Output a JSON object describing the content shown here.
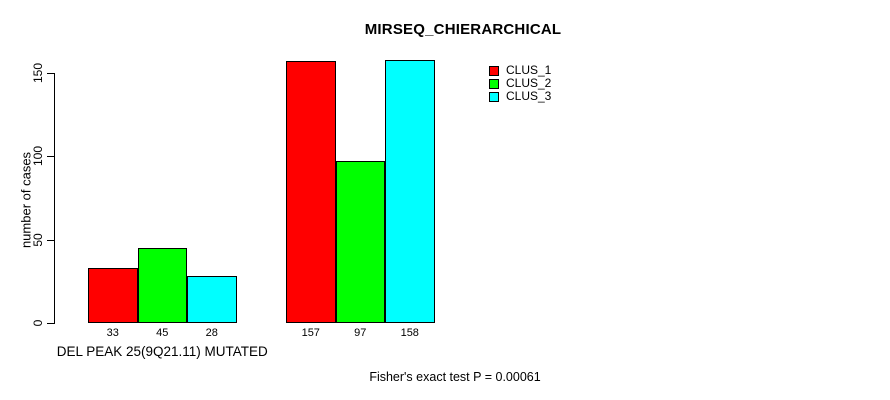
{
  "chart_data": {
    "type": "bar",
    "title": "MIRSEQ_CHIERARCHICAL",
    "ylabel": "number of cases",
    "xlabel": "",
    "yticks": [
      0,
      50,
      100,
      150
    ],
    "ylim": [
      0,
      150
    ],
    "grid": false,
    "legend_position": "top-right",
    "categories": [
      "DEL PEAK 25(9Q21.11) MUTATED",
      ""
    ],
    "series": [
      {
        "name": "CLUS_1",
        "color": "#ff0000",
        "values": [
          33,
          157
        ]
      },
      {
        "name": "CLUS_2",
        "color": "#00ff00",
        "values": [
          45,
          97
        ]
      },
      {
        "name": "CLUS_3",
        "color": "#00ffff",
        "values": [
          28,
          158
        ]
      }
    ],
    "bar_value_labels": [
      [
        33,
        45,
        28
      ],
      [
        157,
        97,
        158
      ]
    ],
    "annotation": "Fisher's exact test P = 0.00061"
  },
  "colors": {
    "axis": "#000000",
    "text": "#000000",
    "background": "#ffffff"
  }
}
